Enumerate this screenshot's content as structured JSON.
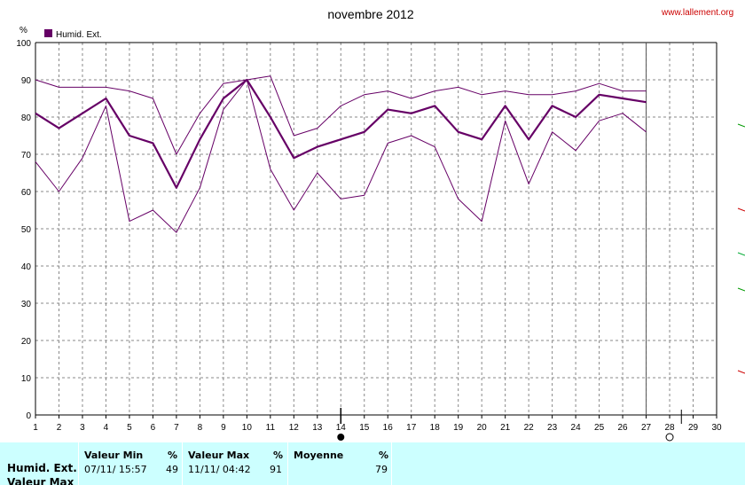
{
  "title": "novembre 2012",
  "watermark": "www.lallement.org",
  "colors": {
    "series": "#660066",
    "grid": "#888888",
    "axis": "#000000",
    "stats_bg": "#ccffff"
  },
  "chart_data": {
    "type": "line",
    "title": "novembre 2012",
    "ylabel": "%",
    "ylim": [
      0,
      100
    ],
    "yticks": [
      0,
      10,
      20,
      30,
      40,
      50,
      60,
      70,
      80,
      90,
      100
    ],
    "x": [
      1,
      2,
      3,
      4,
      5,
      6,
      7,
      8,
      9,
      10,
      11,
      12,
      13,
      14,
      15,
      16,
      17,
      18,
      19,
      20,
      21,
      22,
      23,
      24,
      25,
      26,
      27
    ],
    "xticks": [
      "1",
      "2",
      "3",
      "4",
      "5",
      "6",
      "7",
      "8",
      "9",
      "10",
      "11",
      "12",
      "13",
      "14",
      "15",
      "16",
      "17",
      "18",
      "19",
      "20",
      "21",
      "22",
      "23",
      "24",
      "25",
      "26",
      "27",
      "28",
      "29",
      "30"
    ],
    "legend": [
      "Humid. Ext."
    ],
    "series": [
      {
        "name": "Humid. Ext.",
        "role": "mean",
        "values": [
          81,
          77,
          81,
          85,
          75,
          73,
          61,
          74,
          85,
          90,
          80,
          69,
          72,
          74,
          76,
          82,
          81,
          83,
          76,
          74,
          83,
          74,
          83,
          80,
          86,
          85,
          84
        ]
      },
      {
        "role": "max",
        "values": [
          90,
          88,
          88,
          88,
          87,
          85,
          70,
          81,
          89,
          90,
          91,
          75,
          77,
          83,
          86,
          87,
          85,
          87,
          88,
          86,
          87,
          86,
          86,
          87,
          89,
          87,
          87
        ]
      },
      {
        "role": "min",
        "values": [
          68,
          60,
          69,
          83,
          52,
          55,
          49,
          61,
          82,
          90,
          66,
          55,
          65,
          58,
          59,
          73,
          75,
          72,
          58,
          52,
          79,
          62,
          76,
          71,
          79,
          81,
          76
        ]
      }
    ]
  },
  "stats": {
    "row_label_1": "Humid. Ext.",
    "row_label_2": "Valeur Max",
    "min_header": "Valeur Min",
    "min_unit": "%",
    "min_date": "07/11/ 15:57",
    "min_value": "49",
    "max_header": "Valeur Max",
    "max_unit": "%",
    "max_date": "11/11/ 04:42",
    "max_value": "91",
    "avg_header": "Moyenne",
    "avg_unit": "%",
    "avg_value": "79"
  }
}
